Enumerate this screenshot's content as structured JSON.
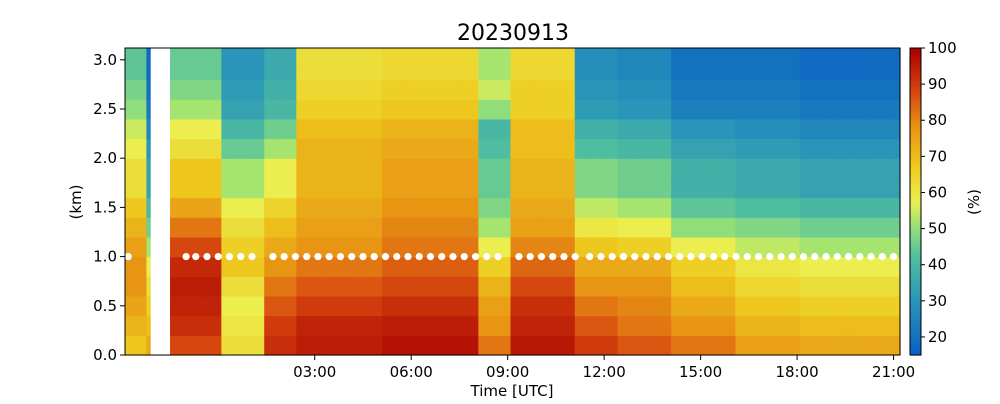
{
  "chart_data": {
    "type": "heatmap",
    "title": "20230913",
    "xlabel": "Time [UTC]",
    "ylabel": "(km)",
    "colorbar_label": "(%)",
    "colormap": "blue-green-yellow-orange-red",
    "x_range_hours": [
      -2.9,
      21.2
    ],
    "y_range_km": [
      0.0,
      3.12
    ],
    "color_range": [
      15,
      100
    ],
    "x_ticks": [
      "03:00",
      "06:00",
      "09:00",
      "12:00",
      "15:00",
      "18:00",
      "21:00"
    ],
    "y_ticks": [
      "0.0",
      "0.5",
      "1.0",
      "1.5",
      "2.0",
      "2.5",
      "3.0"
    ],
    "colorbar_ticks": [
      "20",
      "30",
      "40",
      "50",
      "60",
      "70",
      "80",
      "90",
      "100"
    ],
    "no_data_columns_hours": [
      -2.1,
      -1.5
    ],
    "time_step_hours": 0.333,
    "height_step_km": 0.2,
    "column_profiles": {
      "description_levels_km": [
        0.0,
        0.2,
        0.4,
        0.6,
        0.8,
        1.0,
        1.2,
        1.4,
        1.6,
        1.8,
        2.0,
        2.2,
        2.4,
        2.6,
        2.8,
        3.0
      ],
      "segments": [
        {
          "hours": [
            -2.9,
            -2.1
          ],
          "values": [
            65,
            68,
            72,
            75,
            78,
            78,
            76,
            72,
            68,
            62,
            58,
            55,
            52,
            50,
            47,
            44
          ]
        },
        {
          "hours": [
            -1.5,
            0.0
          ],
          "values": [
            82,
            88,
            92,
            94,
            95,
            93,
            88,
            82,
            75,
            68,
            62,
            58,
            55,
            52,
            48,
            45
          ]
        },
        {
          "hours": [
            0.0,
            1.5
          ],
          "values": [
            65,
            62,
            60,
            58,
            62,
            68,
            66,
            62,
            58,
            52,
            45,
            40,
            36,
            34,
            32,
            30
          ]
        },
        {
          "hours": [
            1.5,
            2.5
          ],
          "values": [
            90,
            92,
            90,
            86,
            82,
            78,
            74,
            70,
            65,
            58,
            52,
            46,
            42,
            40,
            38,
            36
          ]
        },
        {
          "hours": [
            2.5,
            5.0
          ],
          "values": [
            92,
            95,
            94,
            90,
            86,
            82,
            78,
            76,
            74,
            72,
            72,
            70,
            68,
            66,
            64,
            62
          ]
        },
        {
          "hours": [
            5.0,
            8.0
          ],
          "values": [
            96,
            97,
            95,
            92,
            88,
            85,
            82,
            80,
            78,
            76,
            74,
            72,
            70,
            68,
            66,
            64
          ]
        },
        {
          "hours": [
            8.0,
            9.0
          ],
          "values": [
            86,
            82,
            78,
            76,
            72,
            66,
            58,
            52,
            48,
            45,
            42,
            40,
            45,
            50,
            55,
            52
          ]
        },
        {
          "hours": [
            9.0,
            11.0
          ],
          "values": [
            95,
            96,
            94,
            92,
            88,
            84,
            80,
            76,
            74,
            72,
            70,
            70,
            68,
            66,
            66,
            64
          ]
        },
        {
          "hours": [
            11.0,
            12.5
          ],
          "values": [
            92,
            90,
            86,
            82,
            78,
            74,
            68,
            60,
            54,
            48,
            42,
            38,
            34,
            32,
            30,
            28
          ]
        },
        {
          "hours": [
            12.5,
            14.0
          ],
          "values": [
            88,
            86,
            82,
            80,
            78,
            74,
            66,
            58,
            52,
            46,
            40,
            36,
            32,
            30,
            28,
            26
          ]
        },
        {
          "hours": [
            14.0,
            16.0
          ],
          "values": [
            84,
            82,
            78,
            74,
            70,
            66,
            58,
            50,
            44,
            38,
            34,
            30,
            26,
            24,
            22,
            20
          ]
        },
        {
          "hours": [
            16.0,
            18.0
          ],
          "values": [
            80,
            76,
            72,
            68,
            64,
            60,
            54,
            48,
            42,
            36,
            32,
            28,
            26,
            24,
            22,
            20
          ]
        },
        {
          "hours": [
            18.0,
            21.2
          ],
          "values": [
            78,
            74,
            70,
            66,
            62,
            58,
            52,
            46,
            40,
            34,
            30,
            26,
            24,
            22,
            20,
            18
          ]
        }
      ]
    },
    "marker_series": {
      "name": "",
      "height_km": 1.0,
      "marker": "white dot",
      "hours": [
        -2.8,
        -1.0,
        -0.7,
        -0.35,
        0.0,
        0.35,
        0.7,
        1.05,
        1.7,
        2.05,
        2.4,
        2.75,
        3.1,
        3.45,
        3.8,
        4.15,
        4.5,
        4.85,
        5.2,
        5.55,
        5.9,
        6.25,
        6.6,
        6.95,
        7.3,
        7.65,
        8.0,
        8.35,
        8.7,
        9.35,
        9.7,
        10.05,
        10.4,
        10.75,
        11.1,
        11.55,
        11.9,
        12.25,
        12.6,
        12.95,
        13.3,
        13.65,
        14.0,
        14.35,
        14.7,
        15.05,
        15.4,
        15.75,
        16.1,
        16.45,
        16.8,
        17.15,
        17.5,
        17.85,
        18.2,
        18.55,
        18.9,
        19.25,
        19.6,
        19.95,
        20.3,
        20.65,
        21.0
      ]
    }
  }
}
